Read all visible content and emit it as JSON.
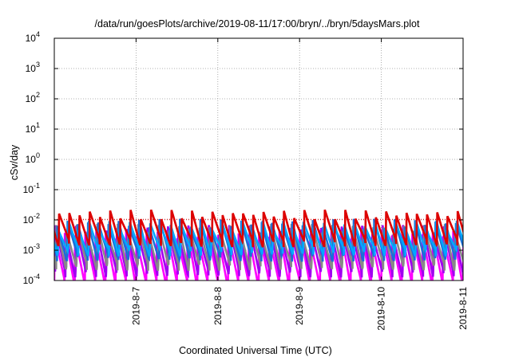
{
  "chart_data": {
    "type": "line",
    "title": "/data/run/goesPlots/archive/2019-08-11/17:00/bryn/../bryn/5daysMars.plot",
    "xlabel": "Coordinated Universal Time (UTC)",
    "ylabel": "cSv/day",
    "y_scale": "log",
    "ylim": [
      0.0001,
      10000
    ],
    "xlim": [
      0,
      5
    ],
    "x_ticks": [
      {
        "value": 1,
        "label": "2019-8-7"
      },
      {
        "value": 2,
        "label": "2019-8-8"
      },
      {
        "value": 3,
        "label": "2019-8-9"
      },
      {
        "value": 4,
        "label": "2019-8-10"
      },
      {
        "value": 5,
        "label": "2019-8-11"
      }
    ],
    "y_ticks": [
      {
        "value": 0.0001,
        "base": "10",
        "exp": "-4"
      },
      {
        "value": 0.001,
        "base": "10",
        "exp": "-3"
      },
      {
        "value": 0.01,
        "base": "10",
        "exp": "-2"
      },
      {
        "value": 0.1,
        "base": "10",
        "exp": "-1"
      },
      {
        "value": 1,
        "base": "10",
        "exp": "0"
      },
      {
        "value": 10,
        "base": "10",
        "exp": "1"
      },
      {
        "value": 100,
        "base": "10",
        "exp": "2"
      },
      {
        "value": 1000,
        "base": "10",
        "exp": "3"
      },
      {
        "value": 10000,
        "base": "10",
        "exp": "4"
      }
    ],
    "grid": true,
    "threshold": {
      "value": 0.0105,
      "color": "#dd0000",
      "style": "dotted"
    },
    "sawtooth_period_days": 0.125,
    "series": [
      {
        "color": "#ff00ff",
        "peak": 0.0035,
        "trough": 9e-05
      },
      {
        "color": "#a000f0",
        "peak": 0.005,
        "trough": 0.00018
      },
      {
        "color": "#888888",
        "peak": 0.0055,
        "trough": 0.0003
      },
      {
        "color": "#1a6fd8",
        "peak": 0.008,
        "trough": 0.0006
      },
      {
        "color": "#00a8ff",
        "peak": 0.007,
        "trough": 0.0009
      },
      {
        "color": "#dd0000",
        "peak": 0.016,
        "trough": 0.0018
      }
    ]
  }
}
